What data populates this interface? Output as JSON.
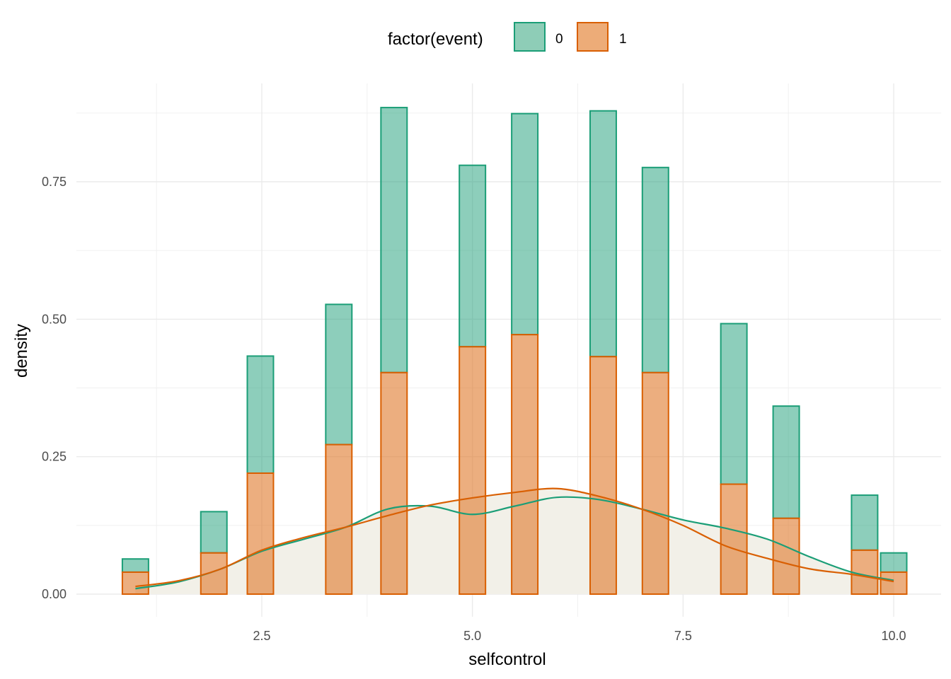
{
  "chart_data": {
    "type": "bar",
    "subtype": "stacked-histogram-with-density",
    "xlabel": "selfcontrol",
    "ylabel": "density",
    "xlim": [
      0.6,
      10.2
    ],
    "ylim": [
      -0.04,
      0.93
    ],
    "x_ticks": [
      2.5,
      5.0,
      7.5,
      10.0
    ],
    "x_tick_labels": [
      "2.5",
      "5.0",
      "7.5",
      "10.0"
    ],
    "y_ticks": [
      0.0,
      0.25,
      0.5,
      0.75
    ],
    "y_tick_labels": [
      "0.00",
      "0.25",
      "0.50",
      "0.75"
    ],
    "grid": true,
    "legend": {
      "title": "factor(event)",
      "position": "top",
      "entries": [
        {
          "label": "0",
          "fill": "#8ecdb7",
          "stroke": "#1b9e77"
        },
        {
          "label": "1",
          "fill": "#edac78",
          "stroke": "#d95f02"
        }
      ]
    },
    "bin_width": 0.3105,
    "bins": [
      {
        "x": 1.0,
        "event0": 0.024,
        "event1": 0.04
      },
      {
        "x": 1.931,
        "event0": 0.075,
        "event1": 0.075
      },
      {
        "x": 2.483,
        "event0": 0.213,
        "event1": 0.22
      },
      {
        "x": 3.414,
        "event0": 0.255,
        "event1": 0.272
      },
      {
        "x": 4.069,
        "event0": 0.482,
        "event1": 0.403
      },
      {
        "x": 5.0,
        "event0": 0.33,
        "event1": 0.45
      },
      {
        "x": 5.621,
        "event0": 0.402,
        "event1": 0.472
      },
      {
        "x": 6.552,
        "event0": 0.447,
        "event1": 0.432
      },
      {
        "x": 7.172,
        "event0": 0.373,
        "event1": 0.403
      },
      {
        "x": 8.103,
        "event0": 0.292,
        "event1": 0.2
      },
      {
        "x": 8.724,
        "event0": 0.204,
        "event1": 0.138
      },
      {
        "x": 9.655,
        "event0": 0.1,
        "event1": 0.08
      },
      {
        "x": 10.0,
        "event0": 0.035,
        "event1": 0.04
      }
    ],
    "density_curves": [
      {
        "name": "0",
        "stroke": "#1b9e77",
        "x": [
          1.0,
          1.5,
          2.0,
          2.5,
          3.0,
          3.5,
          4.0,
          4.5,
          5.0,
          5.5,
          6.0,
          6.5,
          7.0,
          7.5,
          8.0,
          8.5,
          9.0,
          9.5,
          10.0
        ],
        "y": [
          0.01,
          0.022,
          0.045,
          0.078,
          0.1,
          0.122,
          0.155,
          0.16,
          0.145,
          0.16,
          0.176,
          0.172,
          0.155,
          0.135,
          0.12,
          0.1,
          0.068,
          0.04,
          0.025
        ]
      },
      {
        "name": "1",
        "stroke": "#d95f02",
        "x": [
          1.0,
          1.5,
          2.0,
          2.5,
          3.0,
          3.5,
          4.0,
          4.5,
          5.0,
          5.5,
          6.0,
          6.5,
          7.0,
          7.5,
          8.0,
          8.5,
          9.0,
          9.5,
          10.0
        ],
        "y": [
          0.014,
          0.024,
          0.045,
          0.08,
          0.103,
          0.122,
          0.143,
          0.162,
          0.175,
          0.185,
          0.192,
          0.178,
          0.155,
          0.125,
          0.088,
          0.065,
          0.046,
          0.036,
          0.023
        ]
      }
    ],
    "density_fill": "#f2f0e8"
  }
}
